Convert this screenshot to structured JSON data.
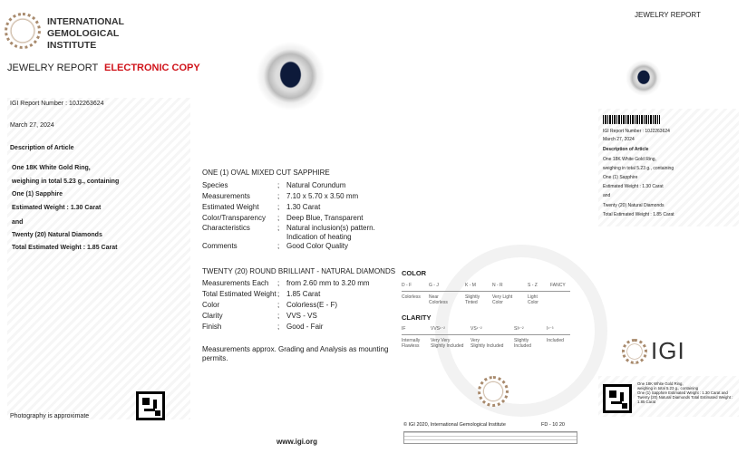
{
  "header": {
    "org_lines": [
      "INTERNATIONAL",
      "GEMOLOGICAL",
      "INSTITUTE"
    ],
    "report_title": "JEWELRY REPORT",
    "copy_label": "ELECTRONIC COPY",
    "copy_color": "#d0141b"
  },
  "left": {
    "report_number": "IGI Report Number : 10J2263624",
    "date": "March 27, 2024",
    "desc_title": "Description of Article",
    "desc_lines": [
      "One 18K White Gold Ring,",
      "weighing in total 5.23 g., containing",
      "One (1) Sapphire",
      "Estimated Weight : 1.30 Carat",
      "and",
      "Twenty (20) Natural Diamonds",
      "Total Estimated Weight : 1.85 Carat"
    ],
    "photo_note": "Photography is approximate"
  },
  "sapphire": {
    "title": "ONE (1) OVAL MIXED CUT SAPPHIRE",
    "rows": [
      {
        "label": "Species",
        "value": "Natural Corundum"
      },
      {
        "label": "Measurements",
        "value": "7.10 x 5.70 x 3.50 mm"
      },
      {
        "label": "Estimated Weight",
        "value": "1.30 Carat"
      },
      {
        "label": "Color/Transparency",
        "value": "Deep Blue, Transparent"
      },
      {
        "label": "Characteristics",
        "value": "Natural inclusion(s) pattern.",
        "value2": "Indication of heating"
      },
      {
        "label": "Comments",
        "value": "Good Color Quality"
      }
    ]
  },
  "diamonds": {
    "title": "TWENTY (20) ROUND BRILLIANT - NATURAL DIAMONDS",
    "rows": [
      {
        "label": "Measurements Each",
        "value": "from 2.60 mm to 3.20 mm"
      },
      {
        "label": "Total Estimated Weight",
        "value": "1.85 Carat"
      },
      {
        "label": "Color",
        "value": "Colorless(E - F)"
      },
      {
        "label": "Clarity",
        "value": "VVS - VS"
      },
      {
        "label": "Finish",
        "value": "Good - Fair"
      }
    ]
  },
  "note": [
    "Measurements approx. Grading and Analysis as mounting",
    "permits."
  ],
  "website": "www.igi.org",
  "color_scale": {
    "title": "COLOR",
    "grades": [
      "D - F",
      "G - J",
      "K - M",
      "N - R",
      "S - Z",
      "FANCY"
    ],
    "descriptions": [
      "Colorless",
      "Near\nColorless",
      "Slightly\nTinted",
      "Very Light\nColor",
      "Light\nColor"
    ]
  },
  "clarity_scale": {
    "title": "CLARITY",
    "grades": [
      "IF",
      "VVS¹⁻²",
      "VS¹⁻²",
      "SI¹⁻²",
      "I¹⁻³"
    ],
    "descriptions": [
      "Internally\nFlawless",
      "Very Very\nSlightly Included",
      "Very\nSlightly Included",
      "Slightly\nIncluded",
      "Included"
    ]
  },
  "footer": {
    "copyright": "© IGI 2020, International Gemological Institute",
    "form_code": "FD - 10 20"
  },
  "right": {
    "title": "JEWELRY REPORT",
    "report_number": "IGI Report Number : 10J2263624",
    "date": "March 27, 2024",
    "desc_title": "Description of Article",
    "desc_lines": [
      "One 18K White Gold Ring,",
      "weighing in total 5.23 g., containing",
      "One (1) Sapphire",
      "Estimated Weight : 1.30 Carat",
      "and",
      "Twenty (20) Natural Diamonds",
      "Total Estimated Weight : 1.85 Carat"
    ],
    "logo_text": "IGI",
    "qr_caption": [
      "One 18K White Gold Ring,",
      "weighing in total 5.23 g., containing",
      "One (1) Sapphire Estimated Weight : 1.30 Carat and",
      "Twenty (20) Natural Diamonds Total Estimated Weight :",
      "1.85 Carat"
    ]
  }
}
